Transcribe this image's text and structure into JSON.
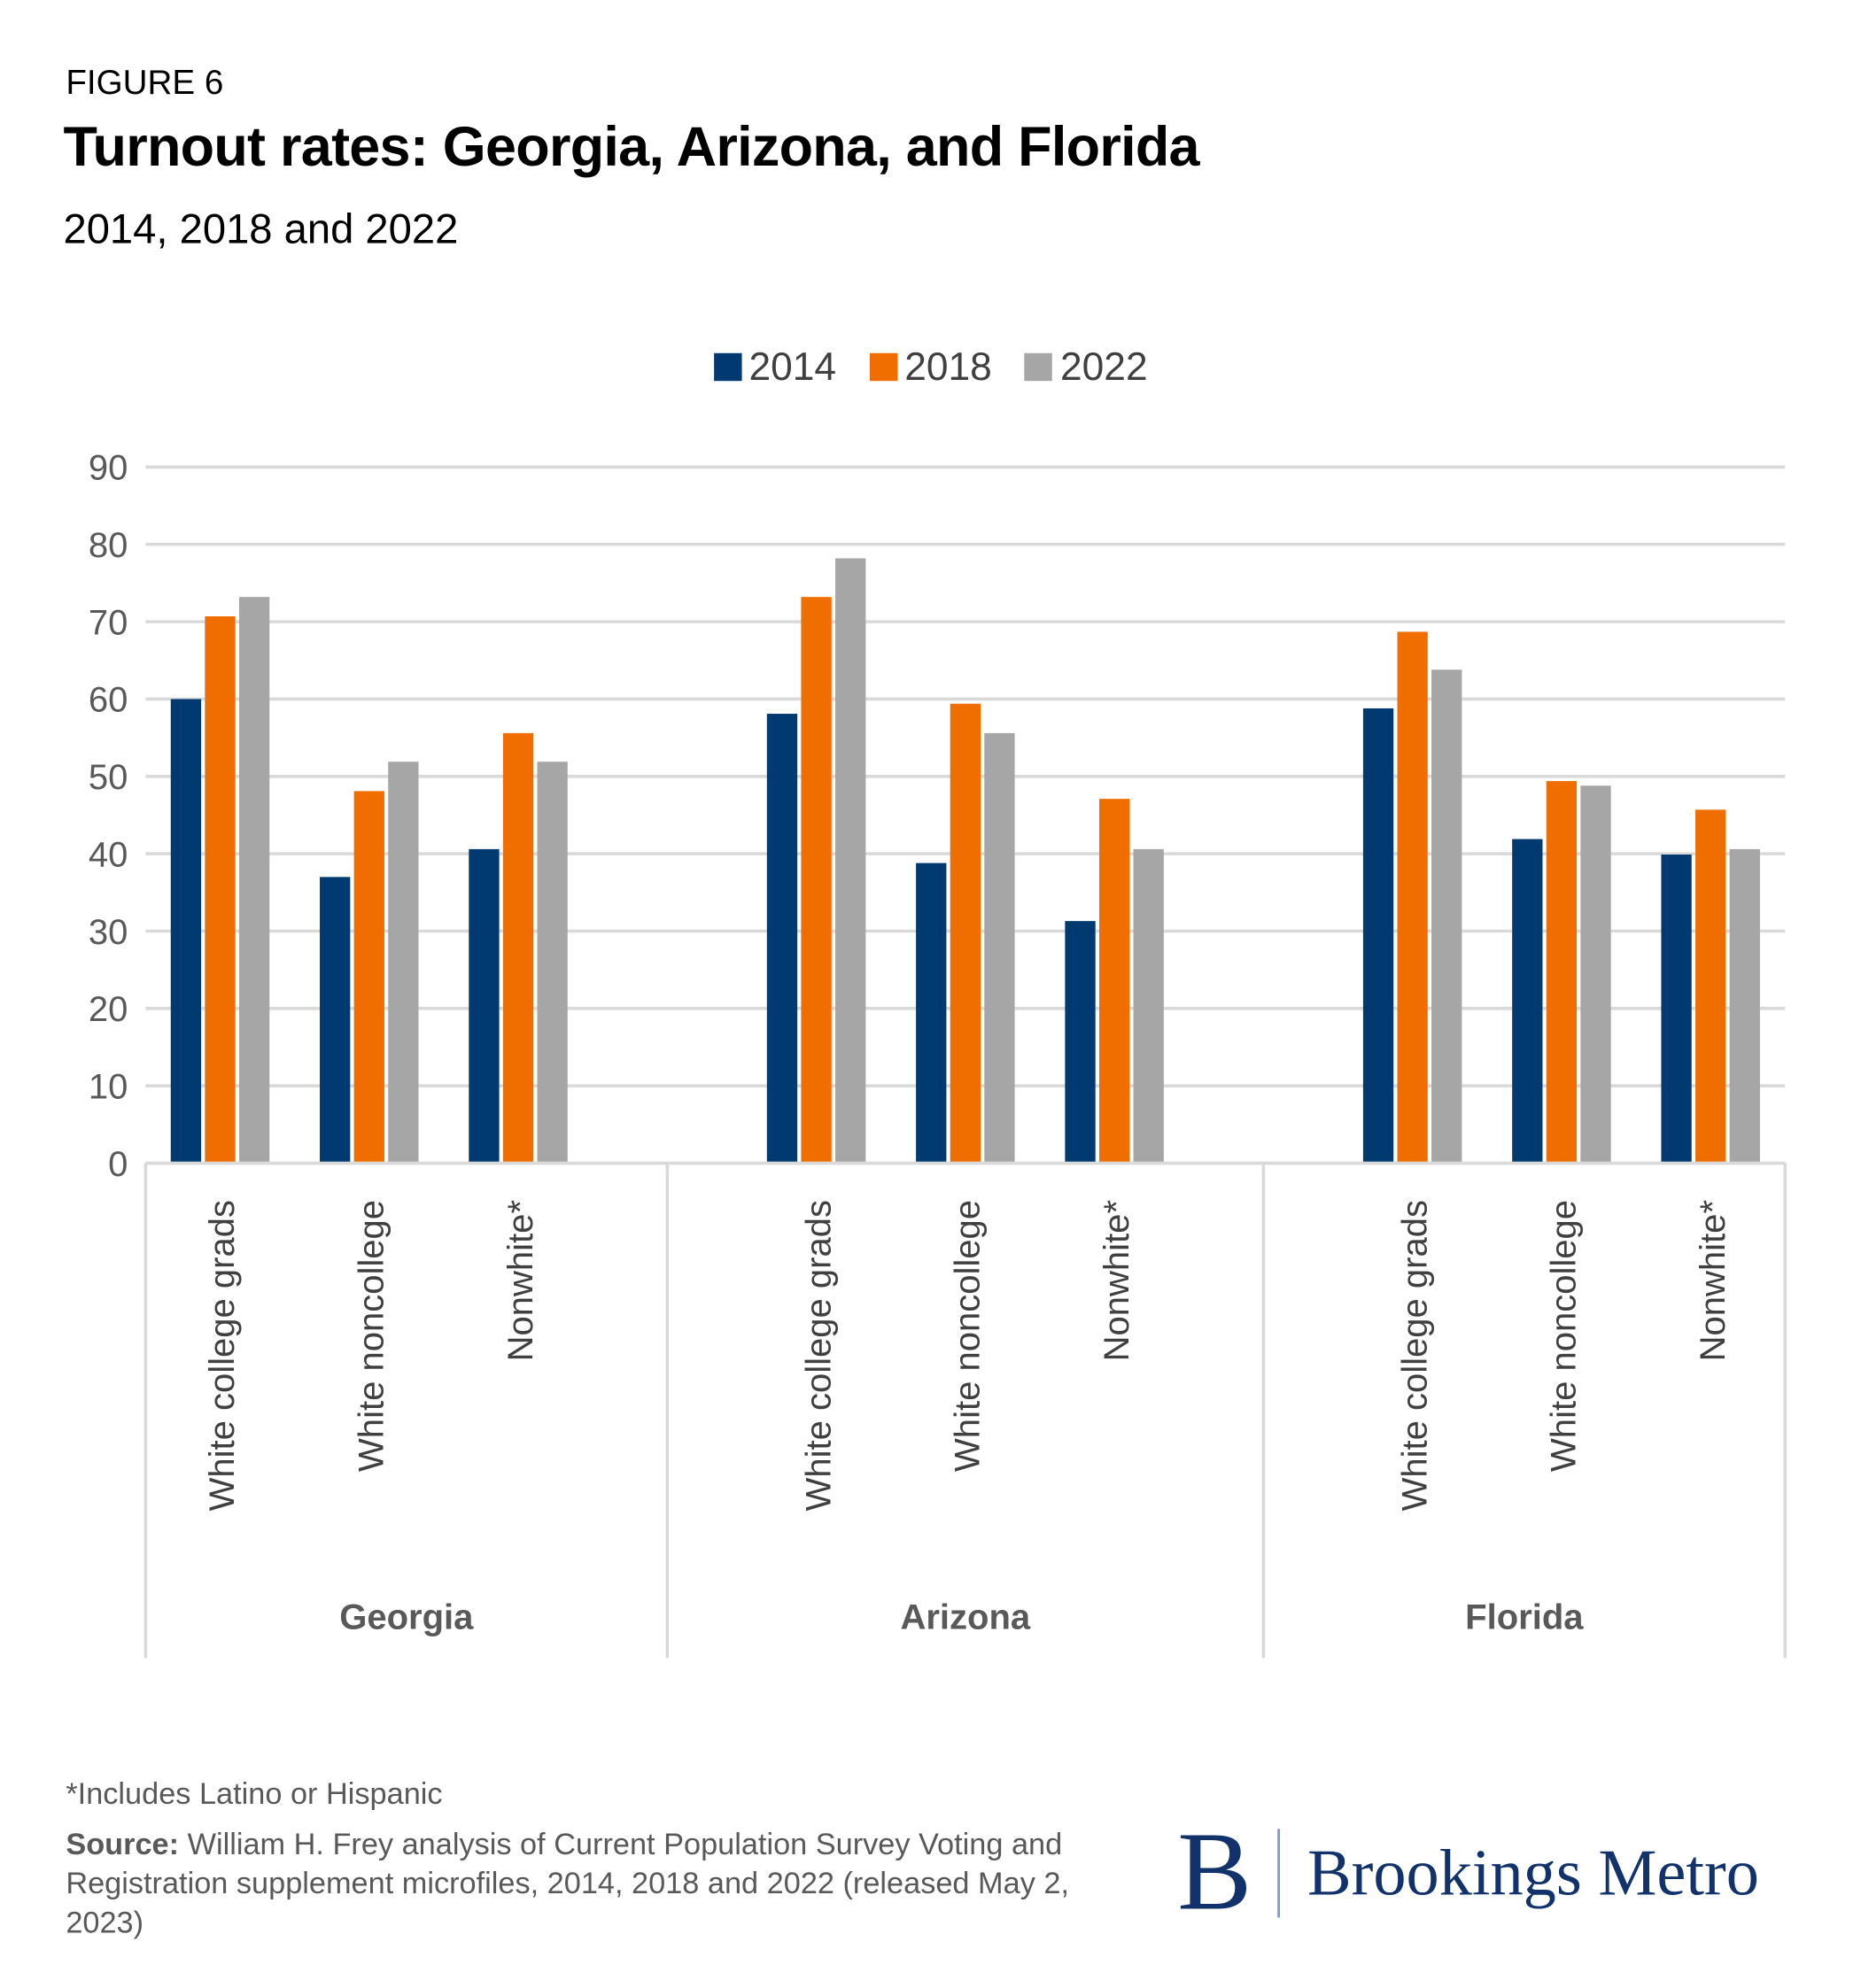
{
  "figure_label": "FIGURE 6",
  "footnote": "*Includes Latino or Hispanic",
  "source_label": "Source:",
  "source_text": "William H. Frey analysis of Current Population Survey Voting and Registration supplement microfiles, 2014, 2018 and 2022 (released May 2, 2023)",
  "logo": {
    "mark": "B",
    "text": "Brookings Metro",
    "color": "#12326b"
  },
  "chart_data": {
    "type": "bar",
    "title": "Turnout rates: Georgia, Arizona, and Florida",
    "subtitle": "2014, 2018 and 2022",
    "ylim": [
      0,
      90
    ],
    "yticks": [
      0,
      10,
      20,
      30,
      40,
      50,
      60,
      70,
      80,
      90
    ],
    "grid": true,
    "legend_position": "top",
    "groups": [
      {
        "name": "Georgia",
        "categories": [
          "White college grads",
          "White noncollege",
          "Nonwhite*"
        ]
      },
      {
        "name": "Arizona",
        "categories": [
          "White college grads",
          "White noncollege",
          "Nonwhite*"
        ]
      },
      {
        "name": "Florida",
        "categories": [
          "White college grads",
          "White noncollege",
          "Nonwhite*"
        ]
      }
    ],
    "series": [
      {
        "name": "2014",
        "color": "#003a70",
        "values": [
          60.0,
          37.0,
          40.6,
          58.1,
          38.8,
          31.3,
          58.8,
          41.9,
          39.9
        ]
      },
      {
        "name": "2018",
        "color": "#f06e00",
        "values": [
          70.7,
          48.1,
          55.6,
          73.2,
          59.4,
          47.1,
          68.7,
          49.4,
          45.7
        ]
      },
      {
        "name": "2022",
        "color": "#a6a6a6",
        "values": [
          73.2,
          51.9,
          51.9,
          78.2,
          55.6,
          40.6,
          63.8,
          48.8,
          40.6
        ]
      }
    ]
  }
}
